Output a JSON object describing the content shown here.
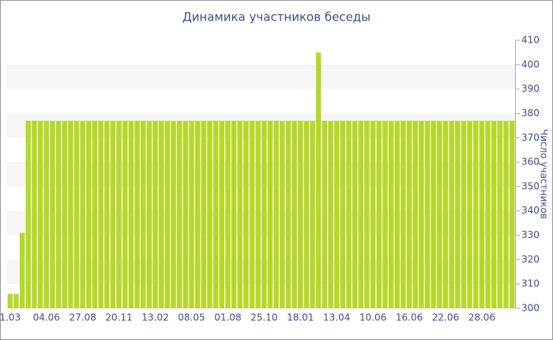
{
  "chart_data": {
    "type": "bar",
    "title": "Динамика участников беседы",
    "y_axis_label": "Число участников",
    "categories": [
      "1.03",
      null,
      null,
      null,
      null,
      null,
      "04.06",
      null,
      null,
      null,
      null,
      null,
      "27.08",
      null,
      null,
      null,
      null,
      null,
      "20.11",
      null,
      null,
      null,
      null,
      null,
      "13.02",
      null,
      null,
      null,
      null,
      null,
      "08.05",
      null,
      null,
      null,
      null,
      null,
      "01.08",
      null,
      null,
      null,
      null,
      null,
      "25.10",
      null,
      null,
      null,
      null,
      null,
      "18.01",
      null,
      null,
      null,
      null,
      null,
      "13.04",
      null,
      null,
      null,
      null,
      null,
      "10.06",
      null,
      null,
      null,
      null,
      null,
      "16.06",
      null,
      null,
      null,
      null,
      null,
      "22.06",
      null,
      null,
      null,
      null,
      null,
      "28.06",
      null,
      null,
      null,
      null,
      null
    ],
    "values": [
      306,
      306,
      331,
      377,
      377,
      377,
      377,
      377,
      377,
      377,
      377,
      377,
      377,
      377,
      377,
      377,
      377,
      377,
      377,
      377,
      377,
      377,
      377,
      377,
      377,
      377,
      377,
      377,
      377,
      377,
      377,
      377,
      377,
      377,
      377,
      377,
      377,
      377,
      377,
      377,
      377,
      377,
      377,
      377,
      377,
      377,
      377,
      377,
      377,
      377,
      377,
      405,
      377,
      377,
      377,
      377,
      377,
      377,
      377,
      377,
      377,
      377,
      377,
      377,
      377,
      377,
      377,
      377,
      377,
      377,
      377,
      377,
      377,
      377,
      377,
      377,
      377,
      377,
      377,
      377,
      377,
      377,
      377,
      377
    ],
    "color": "#b5d82a",
    "ylim": [
      300,
      410
    ],
    "yticks": [
      300,
      310,
      320,
      330,
      340,
      350,
      360,
      370,
      380,
      390,
      400,
      410
    ],
    "banded_grid": true
  }
}
